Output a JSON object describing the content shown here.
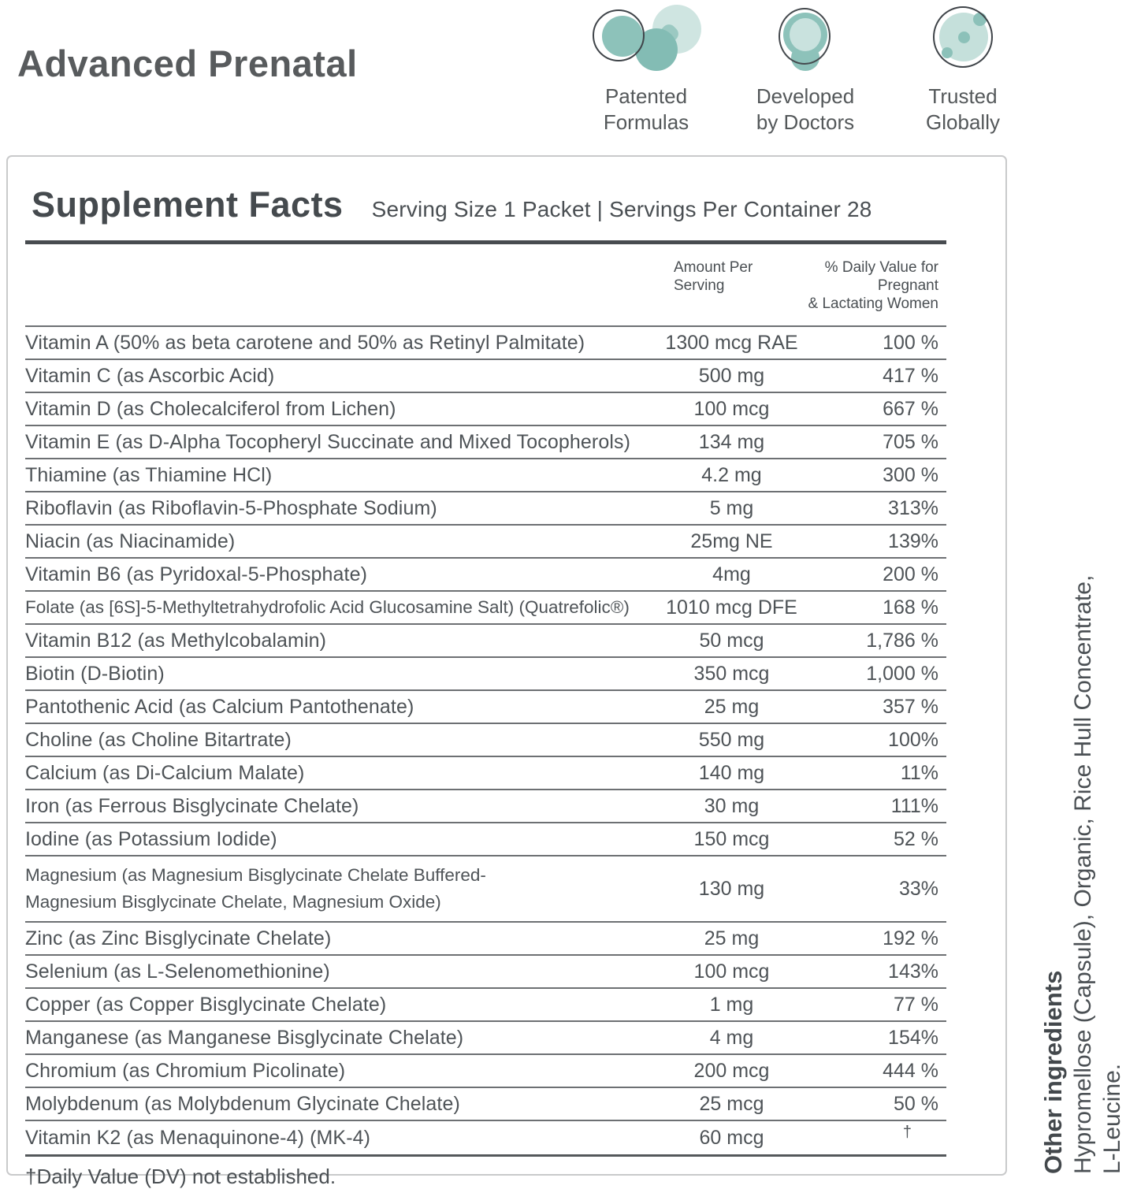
{
  "header": {
    "title": "Advanced Prenatal",
    "badges": [
      {
        "icon": "molecule-icon",
        "label": "Patented\nFormulas"
      },
      {
        "icon": "capsule-icon",
        "label": "Developed\nby Doctors"
      },
      {
        "icon": "globe-icon",
        "label": "Trusted\nGlobally"
      }
    ]
  },
  "panel": {
    "title": "Supplement Facts",
    "serving_info": "Serving Size 1 Packet | Servings Per Container 28",
    "columns": {
      "amount": "Amount Per\nServing",
      "dv": "% Daily Value for Pregnant\n& Lactating Women"
    },
    "rows": [
      {
        "name": "Vitamin A (50% as beta carotene and 50% as Retinyl Palmitate)",
        "amount": "1300 mcg RAE",
        "dv": "100 %"
      },
      {
        "name": "Vitamin C (as Ascorbic Acid)",
        "amount": "500 mg",
        "dv": "417 %"
      },
      {
        "name": "Vitamin D (as Cholecalciferol from Lichen)",
        "amount": "100 mcg",
        "dv": "667 %"
      },
      {
        "name": "Vitamin E (as D-Alpha Tocopheryl Succinate and Mixed Tocopherols)",
        "amount": "134 mg",
        "dv": "705 %"
      },
      {
        "name": "Thiamine (as Thiamine HCl)",
        "amount": "4.2 mg",
        "dv": "300 %"
      },
      {
        "name": "Riboflavin (as Riboflavin-5-Phosphate Sodium)",
        "amount": "5 mg",
        "dv": "313%"
      },
      {
        "name": "Niacin (as Niacinamide)",
        "amount": "25mg NE",
        "dv": "139%"
      },
      {
        "name": "Vitamin B6 (as Pyridoxal-5-Phosphate)",
        "amount": "4mg",
        "dv": "200 %"
      },
      {
        "name": "Folate (as [6S]-5-Methyltetrahydrofolic Acid Glucosamine Salt) (Quatrefolic®)",
        "amount": "1010 mcg DFE",
        "dv": "168 %"
      },
      {
        "name": "Vitamin B12 (as Methylcobalamin)",
        "amount": "50 mcg",
        "dv": "1,786 %"
      },
      {
        "name": "Biotin (D-Biotin)",
        "amount": "350 mcg",
        "dv": "1,000 %"
      },
      {
        "name": "Pantothenic Acid (as Calcium Pantothenate)",
        "amount": "25 mg",
        "dv": "357 %"
      },
      {
        "name": "Choline (as Choline Bitartrate)",
        "amount": "550 mg",
        "dv": "100%"
      },
      {
        "name": "Calcium (as Di-Calcium Malate)",
        "amount": "140 mg",
        "dv": "11%"
      },
      {
        "name": "Iron (as Ferrous Bisglycinate Chelate)",
        "amount": "30 mg",
        "dv": "111%"
      },
      {
        "name": "Iodine (as Potassium Iodide)",
        "amount": "150 mcg",
        "dv": "52 %"
      },
      {
        "name": "Magnesium (as Magnesium Bisglycinate Chelate Buffered-\nMagnesium Bisglycinate Chelate, Magnesium Oxide)",
        "amount": "130 mg",
        "dv": "33%"
      },
      {
        "name": "Zinc (as Zinc Bisglycinate Chelate)",
        "amount": "25 mg",
        "dv": "192 %"
      },
      {
        "name": "Selenium (as L-Selenomethionine)",
        "amount": "100 mcg",
        "dv": "143%"
      },
      {
        "name": "Copper (as Copper Bisglycinate Chelate)",
        "amount": "1 mg",
        "dv": "77 %"
      },
      {
        "name": "Manganese (as Manganese Bisglycinate Chelate)",
        "amount": "4 mg",
        "dv": "154%"
      },
      {
        "name": "Chromium (as Chromium Picolinate)",
        "amount": "200 mcg",
        "dv": "444 %"
      },
      {
        "name": "Molybdenum (as Molybdenum Glycinate Chelate)",
        "amount": "25 mcg",
        "dv": "50 %"
      },
      {
        "name": "Vitamin K2 (as Menaquinone-4) (MK-4)",
        "amount": "60 mcg",
        "dv": "†"
      }
    ],
    "footnote": "†Daily Value (DV) not established."
  },
  "sidebar": {
    "heading": "Other ingredients",
    "text": "Hypromellose (Capsule), Organic, Rice Hull Concentrate,\nL-Leucine."
  },
  "colors": {
    "accent_teal": "#8dc2ba",
    "accent_teal_light": "#cfe5e1",
    "text_dark": "#4e5357",
    "rule_dark": "#484c50",
    "rule_gray": "#6d7073",
    "panel_border": "#c9cacb"
  }
}
